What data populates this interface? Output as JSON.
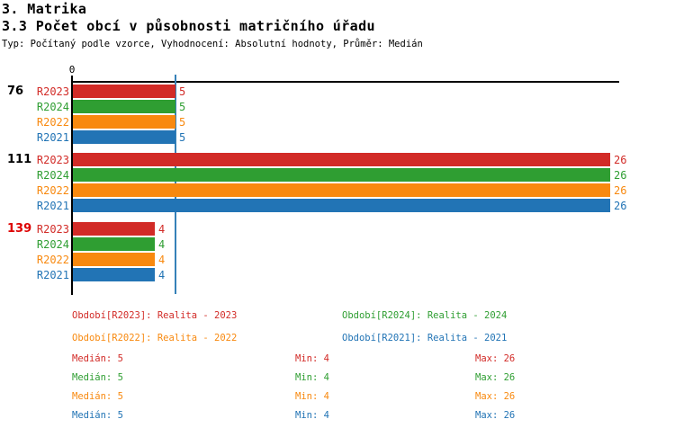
{
  "header": {
    "title": "3. Matrika",
    "subtitle": "3.3 Počet obcí v působnosti matričního úřadu",
    "meta": "Typ: Počítaný podle vzorce, Vyhodnocení: Absolutní hodnoty, Průměr: Medián"
  },
  "colors": {
    "series": {
      "R2023": "#d22b27",
      "R2024": "#2f9e32",
      "R2022": "#f8890f",
      "R2021": "#2274b5"
    },
    "median_line": "#3581b8",
    "axis": "#000000",
    "highlight_label": "#dd0000",
    "label_default": "#000000"
  },
  "chart_data": {
    "type": "bar",
    "orientation": "horizontal",
    "x_axis": {
      "zero_label": "0",
      "min": 0,
      "max_visible": 26.4,
      "grid": false
    },
    "median_value": 5,
    "series_order": [
      "R2023",
      "R2024",
      "R2022",
      "R2021"
    ],
    "groups": [
      {
        "label": "76",
        "highlighted": false,
        "values": [
          5,
          5,
          5,
          5
        ]
      },
      {
        "label": "111",
        "highlighted": false,
        "values": [
          26,
          26,
          26,
          26
        ]
      },
      {
        "label": "139",
        "highlighted": true,
        "values": [
          4,
          4,
          4,
          4
        ]
      }
    ]
  },
  "legend": {
    "items": [
      {
        "series": "R2023",
        "text": "Období[R2023]: Realita - 2023"
      },
      {
        "series": "R2024",
        "text": "Období[R2024]: Realita - 2024"
      },
      {
        "series": "R2022",
        "text": "Období[R2022]: Realita - 2022"
      },
      {
        "series": "R2021",
        "text": "Období[R2021]: Realita - 2021"
      }
    ]
  },
  "stats": {
    "rows": [
      {
        "series": "R2023",
        "median": "Medián: 5",
        "min": "Min: 4",
        "max": "Max: 26"
      },
      {
        "series": "R2024",
        "median": "Medián: 5",
        "min": "Min: 4",
        "max": "Max: 26"
      },
      {
        "series": "R2022",
        "median": "Medián: 5",
        "min": "Min: 4",
        "max": "Max: 26"
      },
      {
        "series": "R2021",
        "median": "Medián: 5",
        "min": "Min: 4",
        "max": "Max: 26"
      }
    ]
  }
}
